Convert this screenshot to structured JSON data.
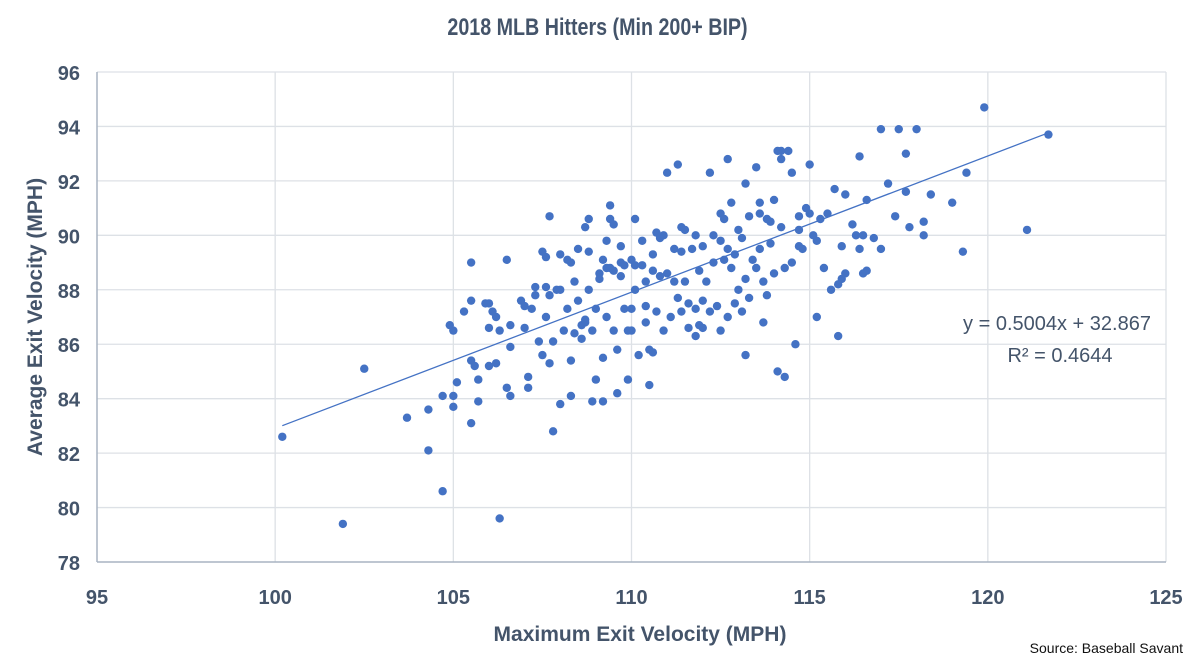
{
  "chart_data": {
    "type": "scatter",
    "title": "2018 MLB Hitters (Min 200+ BIP)",
    "xlabel": "Maximum Exit Velocity (MPH)",
    "ylabel": "Average Exit Velocity (MPH)",
    "xlim": [
      95,
      125
    ],
    "ylim": [
      78,
      96
    ],
    "xticks": [
      95,
      100,
      105,
      110,
      115,
      120,
      125
    ],
    "yticks": [
      78,
      80,
      82,
      84,
      86,
      88,
      90,
      92,
      94,
      96
    ],
    "grid": true,
    "point_color": "#4472c4",
    "trendline": {
      "type": "linear",
      "slope": 0.5004,
      "intercept": 32.867,
      "x_range": [
        100.2,
        121.7
      ],
      "equation_label": "y = 0.5004x + 32.867",
      "r2_label": "R² = 0.4644"
    },
    "source": "Source: Baseball Savant",
    "points": [
      [
        100.2,
        82.6
      ],
      [
        101.9,
        79.4
      ],
      [
        102.5,
        85.1
      ],
      [
        103.7,
        83.3
      ],
      [
        104.3,
        83.6
      ],
      [
        104.3,
        82.1
      ],
      [
        104.7,
        80.6
      ],
      [
        104.7,
        84.1
      ],
      [
        104.9,
        86.7
      ],
      [
        105.0,
        86.5
      ],
      [
        105.0,
        84.1
      ],
      [
        105.1,
        84.6
      ],
      [
        105.0,
        83.7
      ],
      [
        105.3,
        87.2
      ],
      [
        105.5,
        83.1
      ],
      [
        105.5,
        85.4
      ],
      [
        105.5,
        89.0
      ],
      [
        105.5,
        87.6
      ],
      [
        105.6,
        85.2
      ],
      [
        105.7,
        83.9
      ],
      [
        105.7,
        84.7
      ],
      [
        105.9,
        87.5
      ],
      [
        106.0,
        87.5
      ],
      [
        106.0,
        86.6
      ],
      [
        106.0,
        85.2
      ],
      [
        106.1,
        87.2
      ],
      [
        106.2,
        87.0
      ],
      [
        106.2,
        85.3
      ],
      [
        106.3,
        86.5
      ],
      [
        106.3,
        79.6
      ],
      [
        106.5,
        89.1
      ],
      [
        106.5,
        84.4
      ],
      [
        106.6,
        86.7
      ],
      [
        106.6,
        85.9
      ],
      [
        106.6,
        84.1
      ],
      [
        106.9,
        87.6
      ],
      [
        107.0,
        87.4
      ],
      [
        107.0,
        86.6
      ],
      [
        107.1,
        84.8
      ],
      [
        107.1,
        84.4
      ],
      [
        107.2,
        87.3
      ],
      [
        107.3,
        88.1
      ],
      [
        107.3,
        87.8
      ],
      [
        107.4,
        86.1
      ],
      [
        107.5,
        85.6
      ],
      [
        107.5,
        89.4
      ],
      [
        107.6,
        88.1
      ],
      [
        107.6,
        89.2
      ],
      [
        107.6,
        87.0
      ],
      [
        107.7,
        90.7
      ],
      [
        107.7,
        87.8
      ],
      [
        107.7,
        85.3
      ],
      [
        107.8,
        82.8
      ],
      [
        107.8,
        86.1
      ],
      [
        107.9,
        88.0
      ],
      [
        108.0,
        89.3
      ],
      [
        108.0,
        88.0
      ],
      [
        108.0,
        83.8
      ],
      [
        108.1,
        86.5
      ],
      [
        108.2,
        87.3
      ],
      [
        108.2,
        89.1
      ],
      [
        108.3,
        89.0
      ],
      [
        108.3,
        84.1
      ],
      [
        108.3,
        85.4
      ],
      [
        108.4,
        88.3
      ],
      [
        108.4,
        86.4
      ],
      [
        108.5,
        87.6
      ],
      [
        108.5,
        89.5
      ],
      [
        108.6,
        86.7
      ],
      [
        108.6,
        86.2
      ],
      [
        108.7,
        86.9
      ],
      [
        108.7,
        86.8
      ],
      [
        108.7,
        90.3
      ],
      [
        108.8,
        90.6
      ],
      [
        108.8,
        89.4
      ],
      [
        108.8,
        88.0
      ],
      [
        108.9,
        86.5
      ],
      [
        108.9,
        83.9
      ],
      [
        109.0,
        87.3
      ],
      [
        109.0,
        84.7
      ],
      [
        109.1,
        88.4
      ],
      [
        109.1,
        88.6
      ],
      [
        109.2,
        89.1
      ],
      [
        109.2,
        85.5
      ],
      [
        109.2,
        83.9
      ],
      [
        109.3,
        89.8
      ],
      [
        109.3,
        88.8
      ],
      [
        109.3,
        87.0
      ],
      [
        109.4,
        91.1
      ],
      [
        109.4,
        90.6
      ],
      [
        109.4,
        88.8
      ],
      [
        109.5,
        90.4
      ],
      [
        109.5,
        88.7
      ],
      [
        109.5,
        86.5
      ],
      [
        109.6,
        85.8
      ],
      [
        109.6,
        84.2
      ],
      [
        109.7,
        89.6
      ],
      [
        109.7,
        89.0
      ],
      [
        109.7,
        88.5
      ],
      [
        109.8,
        88.9
      ],
      [
        109.8,
        87.3
      ],
      [
        109.9,
        86.5
      ],
      [
        109.9,
        84.7
      ],
      [
        110.0,
        89.1
      ],
      [
        110.0,
        87.3
      ],
      [
        110.0,
        86.5
      ],
      [
        110.1,
        90.6
      ],
      [
        110.1,
        88.9
      ],
      [
        110.1,
        88.0
      ],
      [
        110.2,
        85.6
      ],
      [
        110.3,
        89.8
      ],
      [
        110.3,
        88.9
      ],
      [
        110.4,
        87.4
      ],
      [
        110.4,
        88.3
      ],
      [
        110.4,
        86.8
      ],
      [
        110.5,
        84.5
      ],
      [
        110.5,
        85.8
      ],
      [
        110.6,
        89.3
      ],
      [
        110.6,
        88.7
      ],
      [
        110.6,
        85.7
      ],
      [
        110.7,
        90.1
      ],
      [
        110.7,
        87.2
      ],
      [
        110.8,
        89.9
      ],
      [
        110.8,
        88.5
      ],
      [
        110.9,
        90.0
      ],
      [
        110.9,
        86.5
      ],
      [
        111.0,
        92.3
      ],
      [
        111.0,
        88.6
      ],
      [
        111.1,
        87.0
      ],
      [
        111.2,
        89.5
      ],
      [
        111.2,
        88.3
      ],
      [
        111.3,
        92.6
      ],
      [
        111.3,
        87.7
      ],
      [
        111.4,
        90.3
      ],
      [
        111.4,
        89.4
      ],
      [
        111.4,
        87.2
      ],
      [
        111.5,
        90.2
      ],
      [
        111.5,
        88.3
      ],
      [
        111.6,
        86.6
      ],
      [
        111.6,
        87.5
      ],
      [
        111.7,
        89.5
      ],
      [
        111.8,
        90.0
      ],
      [
        111.8,
        86.3
      ],
      [
        111.8,
        87.3
      ],
      [
        111.9,
        88.7
      ],
      [
        111.9,
        86.7
      ],
      [
        112.0,
        89.6
      ],
      [
        112.0,
        87.6
      ],
      [
        112.0,
        86.6
      ],
      [
        112.1,
        88.3
      ],
      [
        112.2,
        92.3
      ],
      [
        112.2,
        87.2
      ],
      [
        112.3,
        90.0
      ],
      [
        112.3,
        89.0
      ],
      [
        112.4,
        87.4
      ],
      [
        112.5,
        89.8
      ],
      [
        112.5,
        90.8
      ],
      [
        112.5,
        86.5
      ],
      [
        112.6,
        90.6
      ],
      [
        112.6,
        89.1
      ],
      [
        112.7,
        92.8
      ],
      [
        112.7,
        89.5
      ],
      [
        112.7,
        87.0
      ],
      [
        112.8,
        91.2
      ],
      [
        112.8,
        88.8
      ],
      [
        112.9,
        89.3
      ],
      [
        112.9,
        87.5
      ],
      [
        113.0,
        88.0
      ],
      [
        113.0,
        90.2
      ],
      [
        113.1,
        89.9
      ],
      [
        113.1,
        87.2
      ],
      [
        113.2,
        91.9
      ],
      [
        113.2,
        88.4
      ],
      [
        113.2,
        85.6
      ],
      [
        113.3,
        90.7
      ],
      [
        113.3,
        87.7
      ],
      [
        113.4,
        89.1
      ],
      [
        113.5,
        92.5
      ],
      [
        113.5,
        88.8
      ],
      [
        113.6,
        91.2
      ],
      [
        113.6,
        90.8
      ],
      [
        113.6,
        89.5
      ],
      [
        113.7,
        88.3
      ],
      [
        113.7,
        86.8
      ],
      [
        113.8,
        87.8
      ],
      [
        113.8,
        90.6
      ],
      [
        113.9,
        90.5
      ],
      [
        113.9,
        89.7
      ],
      [
        114.0,
        91.3
      ],
      [
        114.0,
        88.6
      ],
      [
        114.1,
        93.1
      ],
      [
        114.1,
        85.0
      ],
      [
        114.2,
        93.1
      ],
      [
        114.2,
        90.3
      ],
      [
        114.2,
        92.8
      ],
      [
        114.3,
        88.8
      ],
      [
        114.3,
        84.8
      ],
      [
        114.4,
        93.1
      ],
      [
        114.5,
        92.3
      ],
      [
        114.5,
        89.0
      ],
      [
        114.6,
        86.0
      ],
      [
        114.7,
        89.6
      ],
      [
        114.7,
        90.7
      ],
      [
        114.7,
        90.2
      ],
      [
        114.8,
        89.5
      ],
      [
        114.9,
        91.0
      ],
      [
        115.0,
        92.6
      ],
      [
        115.0,
        90.8
      ],
      [
        115.1,
        90.0
      ],
      [
        115.2,
        89.8
      ],
      [
        115.2,
        87.0
      ],
      [
        115.3,
        90.6
      ],
      [
        115.4,
        88.8
      ],
      [
        115.5,
        90.8
      ],
      [
        115.6,
        88.0
      ],
      [
        115.7,
        91.7
      ],
      [
        115.8,
        88.2
      ],
      [
        115.8,
        86.3
      ],
      [
        115.9,
        89.6
      ],
      [
        115.9,
        88.4
      ],
      [
        116.0,
        91.5
      ],
      [
        116.0,
        88.6
      ],
      [
        116.2,
        90.4
      ],
      [
        116.3,
        90.0
      ],
      [
        116.4,
        92.9
      ],
      [
        116.4,
        89.5
      ],
      [
        116.5,
        90.0
      ],
      [
        116.5,
        88.6
      ],
      [
        116.6,
        91.3
      ],
      [
        116.6,
        88.7
      ],
      [
        116.8,
        89.9
      ],
      [
        117.0,
        89.5
      ],
      [
        117.2,
        91.9
      ],
      [
        117.4,
        90.7
      ],
      [
        117.7,
        93.0
      ],
      [
        117.7,
        91.6
      ],
      [
        117.8,
        90.3
      ],
      [
        118.0,
        93.9
      ],
      [
        118.2,
        90.5
      ],
      [
        118.2,
        90.0
      ],
      [
        118.4,
        91.5
      ],
      [
        119.0,
        91.2
      ],
      [
        119.3,
        89.4
      ],
      [
        119.4,
        92.3
      ],
      [
        117.0,
        93.9
      ],
      [
        117.5,
        93.9
      ],
      [
        119.9,
        94.7
      ],
      [
        121.1,
        90.2
      ],
      [
        121.7,
        93.7
      ]
    ]
  }
}
